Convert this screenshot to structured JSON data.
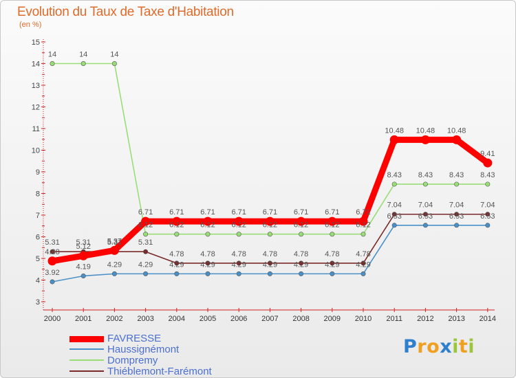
{
  "chart_data": {
    "type": "line",
    "title": "Evolution du Taux de Taxe d'Habitation",
    "subtitle": "(en %)",
    "x": [
      "2000",
      "2001",
      "2002",
      "2003",
      "2004",
      "2005",
      "2006",
      "2007",
      "2008",
      "2009",
      "2010",
      "2011",
      "2012",
      "2013",
      "2014"
    ],
    "ylim": [
      3,
      15
    ],
    "yticks": [
      "3",
      "4",
      "5",
      "6",
      "7",
      "8",
      "9",
      "10",
      "11",
      "12",
      "13",
      "14",
      "15"
    ],
    "grid": false,
    "legend_position": "bottom-left",
    "series": [
      {
        "name": "Haussignémont",
        "color": "#4a90c8",
        "values": [
          3.92,
          4.19,
          4.29,
          4.29,
          4.29,
          4.29,
          4.29,
          4.29,
          4.29,
          4.29,
          4.29,
          6.53,
          6.53,
          6.53,
          6.53
        ],
        "labels": [
          "3.92",
          "4.19",
          "4.29",
          "4.29",
          "4.29",
          "4.29",
          "4.29",
          "4.29",
          "4.29",
          "4.29",
          "4.29",
          "6.53",
          "6.53",
          "6.53",
          "6.53"
        ]
      },
      {
        "name": "Thiéblemont-Farémont",
        "color": "#7a2a2a",
        "values": [
          5.31,
          5.31,
          5.31,
          5.31,
          4.78,
          4.78,
          4.78,
          4.78,
          4.78,
          4.78,
          4.78,
          7.04,
          7.04,
          7.04,
          7.04
        ],
        "labels": [
          "5.31",
          "5.31",
          "5.31",
          "5.31",
          "4.78",
          "4.78",
          "4.78",
          "4.78",
          "4.78",
          "4.78",
          "4.78",
          "7.04",
          "7.04",
          "7.04",
          "7.04"
        ]
      },
      {
        "name": "Dompremy",
        "color": "#99dd77",
        "values": [
          14,
          14,
          14,
          6.12,
          6.12,
          6.12,
          6.12,
          6.12,
          6.12,
          6.12,
          6.12,
          8.43,
          8.43,
          8.43,
          8.43
        ],
        "labels": [
          "14",
          "14",
          "14",
          "6.12",
          "6.12",
          "6.12",
          "6.12",
          "6.12",
          "6.12",
          "6.12",
          "6.12",
          "8.43",
          "8.43",
          "8.43",
          "8.43"
        ]
      },
      {
        "name": "FAVRESSE",
        "color": "#ff0000",
        "values": [
          4.88,
          5.12,
          5.37,
          6.71,
          6.71,
          6.71,
          6.71,
          6.71,
          6.71,
          6.71,
          6.71,
          10.48,
          10.48,
          10.48,
          9.41
        ],
        "labels": [
          "4.88",
          "5.12",
          "5.37",
          "6.71",
          "6.71",
          "6.71",
          "6.71",
          "6.71",
          "6.71",
          "6.71",
          "6.71",
          "10.48",
          "10.48",
          "10.48",
          "9.41"
        ]
      }
    ]
  },
  "legend": {
    "items": [
      {
        "label": "FAVRESSE",
        "color": "#ff0000"
      },
      {
        "label": "Haussignémont",
        "color": "#4a90c8"
      },
      {
        "label": "Dompremy",
        "color": "#99dd77"
      },
      {
        "label": "Thiéblemont-Farémont",
        "color": "#7a2a2a"
      }
    ]
  },
  "logo": {
    "letters": [
      "P",
      "r",
      "o",
      "x",
      "i",
      "t",
      "i"
    ],
    "colors": [
      "#2f7fcf",
      "#f0a020",
      "#f0a020",
      "#2f7fcf",
      "#9bc53d",
      "#f0a020",
      "#9bc53d"
    ]
  }
}
